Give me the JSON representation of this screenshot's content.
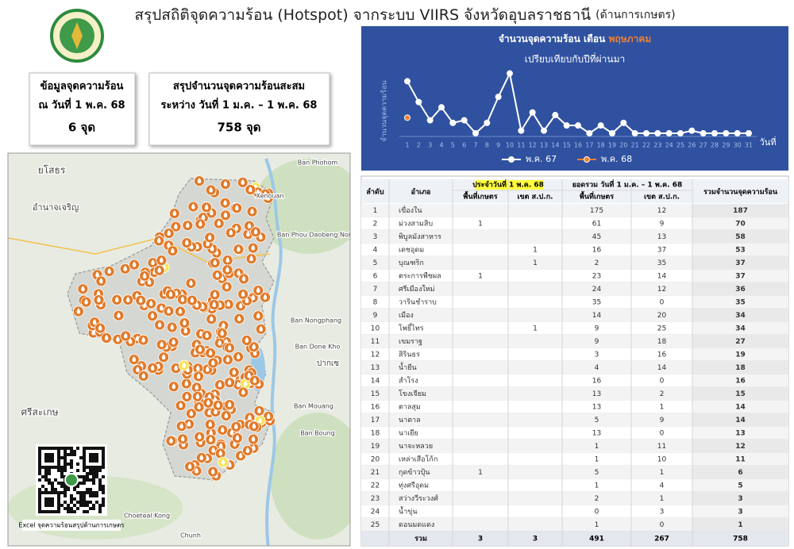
{
  "header": {
    "title": "สรุปสถิติจุดความร้อน (Hotspot) จากระบบ VIIRS จังหวัดอุบลราชธานี",
    "title_note": "(ด้านการเกษตร)"
  },
  "summary": [
    {
      "line1": "ข้อมูลจุดความร้อน",
      "line2": "ณ วันที่ 1 พ.ค. 68",
      "value": "6 จุด"
    },
    {
      "line1": "สรุปจำนวนจุดความร้อนสะสม",
      "line2": "ระหว่าง วันที่ 1 ม.ค. – 1 พ.ค. 68",
      "value": "758 จุด"
    }
  ],
  "map": {
    "labels": [
      "ยโสธร",
      "อำนาจเจริญ",
      "Ban Phohom",
      "Xenouan",
      "Ban Phou Daobeng Noi",
      "Ban Nongphang",
      "Ban Done Kho",
      "ปากเซ",
      "Ban Mouang",
      "Ban Boung",
      "ศรีสะเกษ",
      "Choeteal Kong",
      "Chunh"
    ],
    "qr_caption": "Excel จุดความร้อนสรุปด้านการเกษตร"
  },
  "chart_data": {
    "type": "line",
    "title": "จำนวนจุดความร้อน เดือน",
    "title_highlight": "พฤษภาคม",
    "subtitle": "เปรียบเทียบกับปีที่ผ่านมา",
    "y_label": "จำนวนจุดความร้อน",
    "x_label": "วันที่",
    "categories": [
      1,
      2,
      3,
      4,
      5,
      6,
      7,
      8,
      9,
      10,
      11,
      12,
      13,
      14,
      15,
      16,
      17,
      18,
      19,
      20,
      21,
      22,
      23,
      24,
      25,
      26,
      27,
      28,
      29,
      30,
      31
    ],
    "ylim": [
      0,
      25
    ],
    "series": [
      {
        "name": "พ.ค. 67",
        "color": "#ffffff",
        "values": [
          20,
          12,
          5,
          10,
          4,
          5,
          0,
          4,
          14,
          23,
          1,
          8,
          1,
          7,
          3,
          3,
          0,
          3,
          0,
          4,
          0,
          0,
          0,
          0,
          0,
          1,
          0,
          0,
          0,
          0,
          0
        ]
      },
      {
        "name": "พ.ค. 68",
        "color": "#f07f2e",
        "values": [
          6,
          null,
          null,
          null,
          null,
          null,
          null,
          null,
          null,
          null,
          null,
          null,
          null,
          null,
          null,
          null,
          null,
          null,
          null,
          null,
          null,
          null,
          null,
          null,
          null,
          null,
          null,
          null,
          null,
          null,
          null
        ]
      }
    ]
  },
  "table": {
    "col_rank": "ลำดับ",
    "col_district": "อำเภอ",
    "group_day": "ประจำวันที่ 1 พ.ค. 68",
    "group_sum": "ยอดรวม วันที่ 1 ม.ค. – 1 พ.ค. 68",
    "sub_columns": [
      "พื้นที่เกษตร",
      "เขต ส.ป.ก.",
      "พื้นที่เกษตร",
      "เขต ส.ป.ก."
    ],
    "col_total": "รวมจำนวนจุดความร้อน",
    "rows": [
      [
        1,
        "เขื่องใน",
        null,
        null,
        175,
        12,
        187
      ],
      [
        2,
        "ม่วงสามสิบ",
        1,
        null,
        61,
        9,
        70
      ],
      [
        3,
        "พิบูลมังสาหาร",
        null,
        null,
        45,
        13,
        58
      ],
      [
        4,
        "เดชอุดม",
        null,
        1,
        16,
        37,
        53
      ],
      [
        5,
        "บุณฑริก",
        null,
        1,
        2,
        35,
        37
      ],
      [
        6,
        "ตระการพืชผล",
        1,
        null,
        23,
        14,
        37
      ],
      [
        7,
        "ศรีเมืองใหม่",
        null,
        null,
        24,
        12,
        36
      ],
      [
        8,
        "วารินชำราบ",
        null,
        null,
        35,
        0,
        35
      ],
      [
        9,
        "เมือง",
        null,
        null,
        14,
        20,
        34
      ],
      [
        10,
        "โพธิ์ไทร",
        null,
        1,
        9,
        25,
        34
      ],
      [
        11,
        "เขมราฐ",
        null,
        null,
        9,
        18,
        27
      ],
      [
        12,
        "สิรินธร",
        null,
        null,
        3,
        16,
        19
      ],
      [
        13,
        "น้ำยืน",
        null,
        null,
        4,
        14,
        18
      ],
      [
        14,
        "สำโรง",
        null,
        null,
        16,
        0,
        16
      ],
      [
        15,
        "โขงเจียม",
        null,
        null,
        13,
        2,
        15
      ],
      [
        16,
        "ตาลสุม",
        null,
        null,
        13,
        1,
        14
      ],
      [
        17,
        "นาตาล",
        null,
        null,
        5,
        9,
        14
      ],
      [
        18,
        "นาเยีย",
        null,
        null,
        13,
        0,
        13
      ],
      [
        19,
        "นาจะหลวย",
        null,
        null,
        1,
        11,
        12
      ],
      [
        20,
        "เหล่าเสือโก้ก",
        null,
        null,
        1,
        10,
        11
      ],
      [
        21,
        "กุดข้าวปุ้น",
        1,
        null,
        5,
        1,
        6
      ],
      [
        22,
        "ทุ่งศรีอุดม",
        null,
        null,
        1,
        4,
        5
      ],
      [
        23,
        "สว่างวีระวงศ์",
        null,
        null,
        2,
        1,
        3
      ],
      [
        24,
        "น้ำขุ่น",
        null,
        null,
        0,
        3,
        3
      ],
      [
        25,
        "ดอนมดแดง",
        null,
        null,
        1,
        0,
        1
      ]
    ],
    "total": [
      "รวม",
      3,
      3,
      491,
      267,
      758
    ]
  }
}
